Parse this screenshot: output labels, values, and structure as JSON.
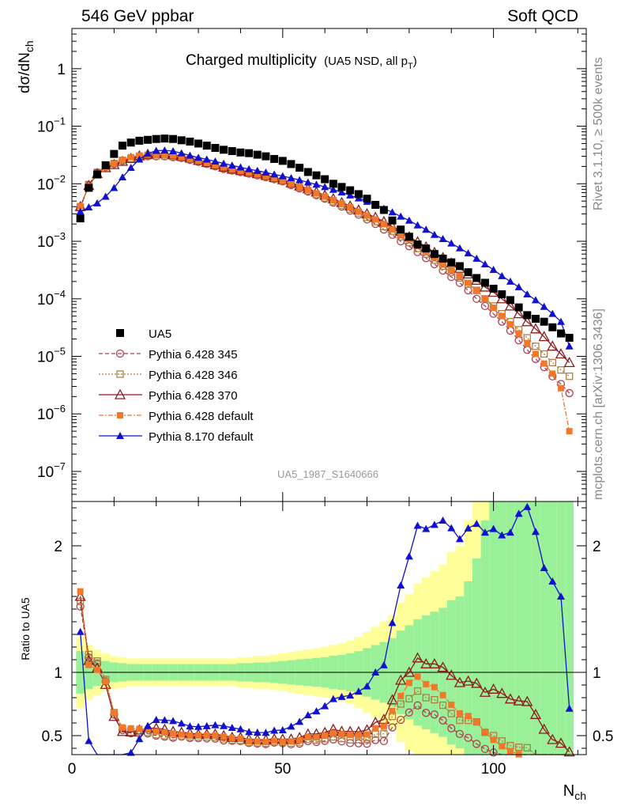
{
  "header": {
    "left": "546 GeV ppbar",
    "right": "Soft QCD"
  },
  "side_labels": {
    "rivet": "Rivet 3.1.10, ≥ 500k events",
    "source": "mcplots.cern.ch [arXiv:1306.3436]"
  },
  "chart_data": {
    "type": "scatter",
    "title_main": "Charged multiplicity",
    "title_sub": "(UA5 NSD, all p",
    "title_sub_index": "T",
    "title_sub_close": ")",
    "ylabel_base": "dσ/dN",
    "ylabel_sub": "ch",
    "xlabel_base": "N",
    "xlabel_sub": "ch",
    "ratio_ylabel": "Ratio to UA5",
    "analysis_id": "UA5_1987_S1640666",
    "xlim": [
      0,
      122
    ],
    "ylim_log": [
      3e-08,
      5
    ],
    "ratio_ylim": [
      0.35,
      2.35
    ],
    "top_ytick_labels": [
      "1",
      "10",
      "10",
      "10",
      "10",
      "10",
      "10",
      "10"
    ],
    "top_ytick_exponents": [
      "",
      "−1",
      "−2",
      "−3",
      "−4",
      "−5",
      "−6",
      "−7"
    ],
    "xtick_labels": [
      "0",
      "50",
      "100"
    ],
    "ratio_ytick_labels": [
      "0.5",
      "1",
      "2"
    ],
    "legend": [
      "UA5",
      "Pythia 6.428 345",
      "Pythia 6.428 346",
      "Pythia 6.428 370",
      "Pythia 6.428 default",
      "Pythia 8.170 default"
    ],
    "colors": {
      "UA5": "#000000",
      "p345": "#b04050",
      "p346": "#b08040",
      "p370": "#8b1a1a",
      "pdef": "#f07828",
      "p8": "#1010d0",
      "band_yellow": "#ffff99",
      "band_green": "#99f099"
    },
    "x": [
      2,
      4,
      6,
      8,
      10,
      12,
      14,
      16,
      18,
      20,
      22,
      24,
      26,
      28,
      30,
      32,
      34,
      36,
      38,
      40,
      42,
      44,
      46,
      48,
      50,
      52,
      54,
      56,
      58,
      60,
      62,
      64,
      66,
      68,
      70,
      72,
      74,
      76,
      78,
      80,
      82,
      84,
      86,
      88,
      90,
      92,
      94,
      96,
      98,
      100,
      102,
      104,
      106,
      108,
      110,
      112,
      114,
      116,
      118
    ],
    "ua5": [
      0.0025,
      0.0085,
      0.0145,
      0.021,
      0.033,
      0.046,
      0.052,
      0.056,
      0.058,
      0.06,
      0.061,
      0.06,
      0.057,
      0.054,
      0.05,
      0.046,
      0.042,
      0.039,
      0.037,
      0.035,
      0.034,
      0.032,
      0.03,
      0.027,
      0.025,
      0.022,
      0.019,
      0.016,
      0.014,
      0.012,
      0.01,
      0.0088,
      0.0077,
      0.0066,
      0.0055,
      0.0043,
      0.0035,
      0.0023,
      0.0016,
      0.0012,
      0.00088,
      0.00075,
      0.0006,
      0.0005,
      0.00043,
      0.00037,
      0.00029,
      0.00023,
      0.00019,
      0.00015,
      0.00012,
      9.5e-05,
      7.1e-05,
      5.2e-05,
      4.5e-05,
      4e-05,
      3.2e-05,
      2.5e-05,
      2.1e-05
    ],
    "ua5_ratio_err": [
      0.28,
      0.22,
      0.18,
      0.15,
      0.13,
      0.12,
      0.11,
      0.11,
      0.11,
      0.11,
      0.11,
      0.11,
      0.11,
      0.11,
      0.11,
      0.11,
      0.11,
      0.11,
      0.11,
      0.12,
      0.12,
      0.13,
      0.13,
      0.14,
      0.15,
      0.16,
      0.17,
      0.18,
      0.19,
      0.2,
      0.22,
      0.23,
      0.25,
      0.28,
      0.32,
      0.36,
      0.4,
      0.45,
      0.55,
      0.62,
      0.7,
      0.75,
      0.8,
      0.85,
      0.95,
      1.0,
      1.2,
      1.5,
      2.0,
      2.5,
      3.0,
      3.5,
      4.0,
      5.0,
      5.0,
      5.0,
      5.0,
      5.0,
      5.0
    ],
    "series": [
      {
        "name": "Pythia 6.428 345",
        "key": "p345",
        "marker": "circle",
        "dash": "5,3",
        "y": [
          0.0038,
          0.0095,
          0.0155,
          0.0195,
          0.022,
          0.025,
          0.027,
          0.029,
          0.03,
          0.03,
          0.03,
          0.029,
          0.028,
          0.026,
          0.024,
          0.022,
          0.02,
          0.018,
          0.017,
          0.016,
          0.015,
          0.014,
          0.013,
          0.012,
          0.011,
          0.0095,
          0.0083,
          0.0073,
          0.0063,
          0.0055,
          0.0047,
          0.004,
          0.0034,
          0.0029,
          0.0024,
          0.002,
          0.0016,
          0.0013,
          0.001,
          0.00082,
          0.00065,
          0.00051,
          0.0004,
          0.00031,
          0.00024,
          0.00019,
          0.00014,
          0.0001,
          7.5e-05,
          5.5e-05,
          4e-05,
          2.8e-05,
          1.9e-05,
          1.3e-05,
          9e-06,
          6.5e-06,
          4.5e-06,
          3.3e-06,
          2.3e-06
        ]
      },
      {
        "name": "Pythia 6.428 346",
        "key": "p346",
        "marker": "square-open",
        "dash": "2,2",
        "y": [
          0.0039,
          0.0097,
          0.0158,
          0.0198,
          0.0225,
          0.0255,
          0.0275,
          0.0295,
          0.0305,
          0.0305,
          0.0305,
          0.0295,
          0.0285,
          0.0265,
          0.0245,
          0.0225,
          0.0205,
          0.0185,
          0.0172,
          0.0162,
          0.0152,
          0.0142,
          0.0132,
          0.0122,
          0.0112,
          0.0097,
          0.0085,
          0.0075,
          0.0065,
          0.0057,
          0.0049,
          0.0042,
          0.0036,
          0.0031,
          0.0026,
          0.0022,
          0.0018,
          0.0015,
          0.0012,
          0.00095,
          0.00075,
          0.0006,
          0.00047,
          0.00037,
          0.00029,
          0.00023,
          0.00018,
          0.00014,
          0.0001,
          7.5e-05,
          5.5e-05,
          4e-05,
          2.9e-05,
          2.1e-05,
          1.5e-05,
          1.1e-05,
          7.8e-06,
          5.8e-06,
          4.5e-06
        ]
      },
      {
        "name": "Pythia 6.428 370",
        "key": "p370",
        "marker": "triangle-open",
        "dash": "",
        "y": [
          0.004,
          0.0093,
          0.015,
          0.019,
          0.0215,
          0.0245,
          0.0275,
          0.0305,
          0.0325,
          0.0335,
          0.0335,
          0.032,
          0.03,
          0.028,
          0.0255,
          0.0235,
          0.0215,
          0.0195,
          0.018,
          0.017,
          0.016,
          0.015,
          0.014,
          0.0128,
          0.0118,
          0.0104,
          0.0092,
          0.0082,
          0.0072,
          0.0063,
          0.0055,
          0.0047,
          0.0041,
          0.0035,
          0.003,
          0.0026,
          0.0022,
          0.0018,
          0.0015,
          0.0012,
          0.00098,
          0.0008,
          0.00064,
          0.00052,
          0.00042,
          0.00034,
          0.00027,
          0.00021,
          0.00016,
          0.00013,
          0.0001,
          7.5e-05,
          5.5e-05,
          4e-05,
          3e-05,
          2.2e-05,
          1.5e-05,
          1.1e-05,
          7.8e-06
        ]
      },
      {
        "name": "Pythia 6.428 default",
        "key": "pdef",
        "marker": "square-filled",
        "dash": "6,2,2,2",
        "y": [
          0.0041,
          0.009,
          0.0148,
          0.0195,
          0.0225,
          0.026,
          0.029,
          0.031,
          0.032,
          0.032,
          0.032,
          0.031,
          0.029,
          0.027,
          0.025,
          0.023,
          0.021,
          0.0192,
          0.0178,
          0.0166,
          0.0155,
          0.0145,
          0.0135,
          0.0124,
          0.0113,
          0.01,
          0.0088,
          0.0078,
          0.0068,
          0.006,
          0.0052,
          0.0045,
          0.0039,
          0.0033,
          0.0028,
          0.0024,
          0.002,
          0.0016,
          0.0013,
          0.0011,
          0.00085,
          0.00068,
          0.00053,
          0.00041,
          0.00032,
          0.00025,
          0.00019,
          0.00014,
          0.0001,
          7e-05,
          5e-05,
          3.6e-05,
          2.5e-05,
          1.7e-05,
          1.1e-05,
          7.5e-06,
          5e-06,
          2.8e-06,
          5e-07
        ]
      },
      {
        "name": "Pythia 8.170 default",
        "key": "p8",
        "marker": "triangle-filled",
        "dash": "",
        "y": [
          0.0033,
          0.0039,
          0.0046,
          0.006,
          0.0085,
          0.013,
          0.019,
          0.0265,
          0.0335,
          0.0375,
          0.038,
          0.037,
          0.034,
          0.031,
          0.0285,
          0.0265,
          0.0245,
          0.0225,
          0.0208,
          0.0193,
          0.018,
          0.0168,
          0.0157,
          0.0146,
          0.0136,
          0.0126,
          0.0116,
          0.0106,
          0.0097,
          0.0088,
          0.0079,
          0.0071,
          0.0063,
          0.0056,
          0.0049,
          0.0043,
          0.0037,
          0.0032,
          0.0027,
          0.0023,
          0.0019,
          0.0016,
          0.0013,
          0.0011,
          0.00092,
          0.00076,
          0.00062,
          0.0005,
          0.0004,
          0.00032,
          0.00025,
          0.0002,
          0.00016,
          0.00012,
          9.5e-05,
          7.3e-05,
          5.5e-05,
          4e-05,
          1.5e-05
        ]
      }
    ]
  }
}
